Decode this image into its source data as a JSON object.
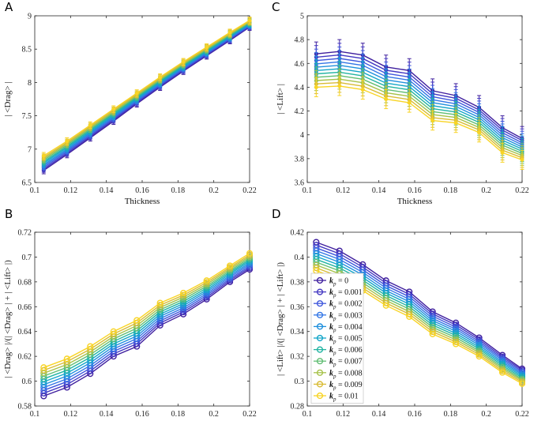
{
  "series_names": [
    "k_p = 0",
    "k_p = 0.001",
    "k_p = 0.002",
    "k_p = 0.003",
    "k_p = 0.004",
    "k_p = 0.005",
    "k_p = 0.006",
    "k_p = 0.007",
    "k_p = 0.008",
    "k_p = 0.009",
    "k_p = 0.01"
  ],
  "legend": {
    "symbol": "k",
    "subscript": "p",
    "values": [
      "0",
      "0.001",
      "0.002",
      "0.003",
      "0.004",
      "0.005",
      "0.006",
      "0.007",
      "0.008",
      "0.009",
      "0.01"
    ]
  },
  "colors": [
    "#3f1f9e",
    "#4438c2",
    "#3f57dc",
    "#3276e6",
    "#2090dd",
    "#14a6c8",
    "#22b4a2",
    "#62be74",
    "#a6c24a",
    "#d9bc36",
    "#f8d425"
  ],
  "chart_data": [
    {
      "id": "A",
      "type": "line",
      "panel_label": "A",
      "xlabel": "Thickness",
      "ylabel": "| <Drag> |",
      "xlim": [
        0.1,
        0.22
      ],
      "ylim": [
        6.5,
        9
      ],
      "xticks": [
        0.1,
        0.12,
        0.14,
        0.16,
        0.18,
        0.2,
        0.22
      ],
      "xtick_labels": [
        "0.1",
        "0.12",
        "0.14",
        "0.16",
        "0.18",
        "0.2",
        "0.22"
      ],
      "yticks": [
        6.5,
        7,
        7.5,
        8,
        8.5,
        9
      ],
      "ytick_labels": [
        "6.5",
        "7",
        "7.5",
        "8",
        "8.5",
        "9"
      ],
      "x": [
        0.105,
        0.118,
        0.131,
        0.144,
        0.157,
        0.17,
        0.183,
        0.196,
        0.209,
        0.22
      ],
      "series_start": [
        6.68,
        6.92,
        7.17,
        7.42,
        7.68,
        7.93,
        8.17,
        8.4,
        8.63,
        8.83
      ],
      "series_end": [
        6.9,
        7.12,
        7.36,
        7.6,
        7.84,
        8.08,
        8.31,
        8.53,
        8.75,
        8.93
      ],
      "error": 0.05
    },
    {
      "id": "B",
      "type": "line",
      "panel_label": "B",
      "xlabel": "Thickness",
      "ylabel": "| <Drag> |/(| <Drag> | + | <Lift> |)",
      "xlim": [
        0.1,
        0.22
      ],
      "ylim": [
        0.58,
        0.72
      ],
      "xticks": [
        0.1,
        0.12,
        0.14,
        0.16,
        0.18,
        0.2,
        0.22
      ],
      "xtick_labels": [
        "0.1",
        "0.12",
        "0.14",
        "0.16",
        "0.18",
        "0.2",
        "0.22"
      ],
      "yticks": [
        0.58,
        0.6,
        0.62,
        0.64,
        0.66,
        0.68,
        0.7,
        0.72
      ],
      "ytick_labels": [
        "0.58",
        "0.6",
        "0.62",
        "0.64",
        "0.66",
        "0.68",
        "0.7",
        "0.72"
      ],
      "x": [
        0.105,
        0.118,
        0.131,
        0.144,
        0.157,
        0.17,
        0.183,
        0.196,
        0.209,
        0.22
      ],
      "series_start": [
        0.588,
        0.595,
        0.606,
        0.62,
        0.628,
        0.645,
        0.654,
        0.666,
        0.68,
        0.69
      ],
      "series_end": [
        0.611,
        0.618,
        0.628,
        0.64,
        0.649,
        0.663,
        0.671,
        0.681,
        0.693,
        0.703
      ],
      "error": 0
    },
    {
      "id": "C",
      "type": "line",
      "panel_label": "C",
      "xlabel": "Thickness",
      "ylabel": "| <Lift> |",
      "xlim": [
        0.1,
        0.22
      ],
      "ylim": [
        3.6,
        5
      ],
      "xticks": [
        0.1,
        0.12,
        0.14,
        0.16,
        0.18,
        0.2,
        0.22
      ],
      "xtick_labels": [
        "0.1",
        "0.12",
        "0.14",
        "0.16",
        "0.18",
        "0.2",
        "0.22"
      ],
      "yticks": [
        3.6,
        3.8,
        4,
        4.2,
        4.4,
        4.6,
        4.8,
        5
      ],
      "ytick_labels": [
        "3.6",
        "3.8",
        "4",
        "4.2",
        "4.4",
        "4.6",
        "4.8",
        "5"
      ],
      "x": [
        0.105,
        0.118,
        0.131,
        0.144,
        0.157,
        0.17,
        0.183,
        0.196,
        0.209,
        0.22
      ],
      "series_start": [
        4.68,
        4.7,
        4.67,
        4.57,
        4.54,
        4.37,
        4.33,
        4.23,
        4.06,
        3.97
      ],
      "series_end": [
        4.4,
        4.41,
        4.38,
        4.3,
        4.27,
        4.12,
        4.1,
        4.02,
        3.85,
        3.79
      ],
      "error_start": 0.1,
      "error_end": 0.08
    },
    {
      "id": "D",
      "type": "line",
      "panel_label": "D",
      "xlabel": "Thickness",
      "ylabel": "| <Lift> |/(| <Drag> | + | <Lift> |)",
      "xlim": [
        0.1,
        0.22
      ],
      "ylim": [
        0.28,
        0.42
      ],
      "xticks": [
        0.1,
        0.12,
        0.14,
        0.16,
        0.18,
        0.2,
        0.22
      ],
      "xtick_labels": [
        "0.1",
        "0.12",
        "0.14",
        "0.16",
        "0.18",
        "0.2",
        "0.22"
      ],
      "yticks": [
        0.28,
        0.3,
        0.32,
        0.34,
        0.36,
        0.38,
        0.4,
        0.42
      ],
      "ytick_labels": [
        "0.28",
        "0.3",
        "0.32",
        "0.34",
        "0.36",
        "0.38",
        "0.4",
        "0.42"
      ],
      "x": [
        0.105,
        0.118,
        0.131,
        0.144,
        0.157,
        0.17,
        0.183,
        0.196,
        0.209,
        0.22
      ],
      "series_start": [
        0.412,
        0.405,
        0.394,
        0.381,
        0.372,
        0.356,
        0.347,
        0.335,
        0.321,
        0.31
      ],
      "series_end": [
        0.389,
        0.382,
        0.373,
        0.361,
        0.352,
        0.338,
        0.33,
        0.32,
        0.307,
        0.298
      ],
      "error": 0,
      "legend_position": "bottom-left"
    }
  ]
}
